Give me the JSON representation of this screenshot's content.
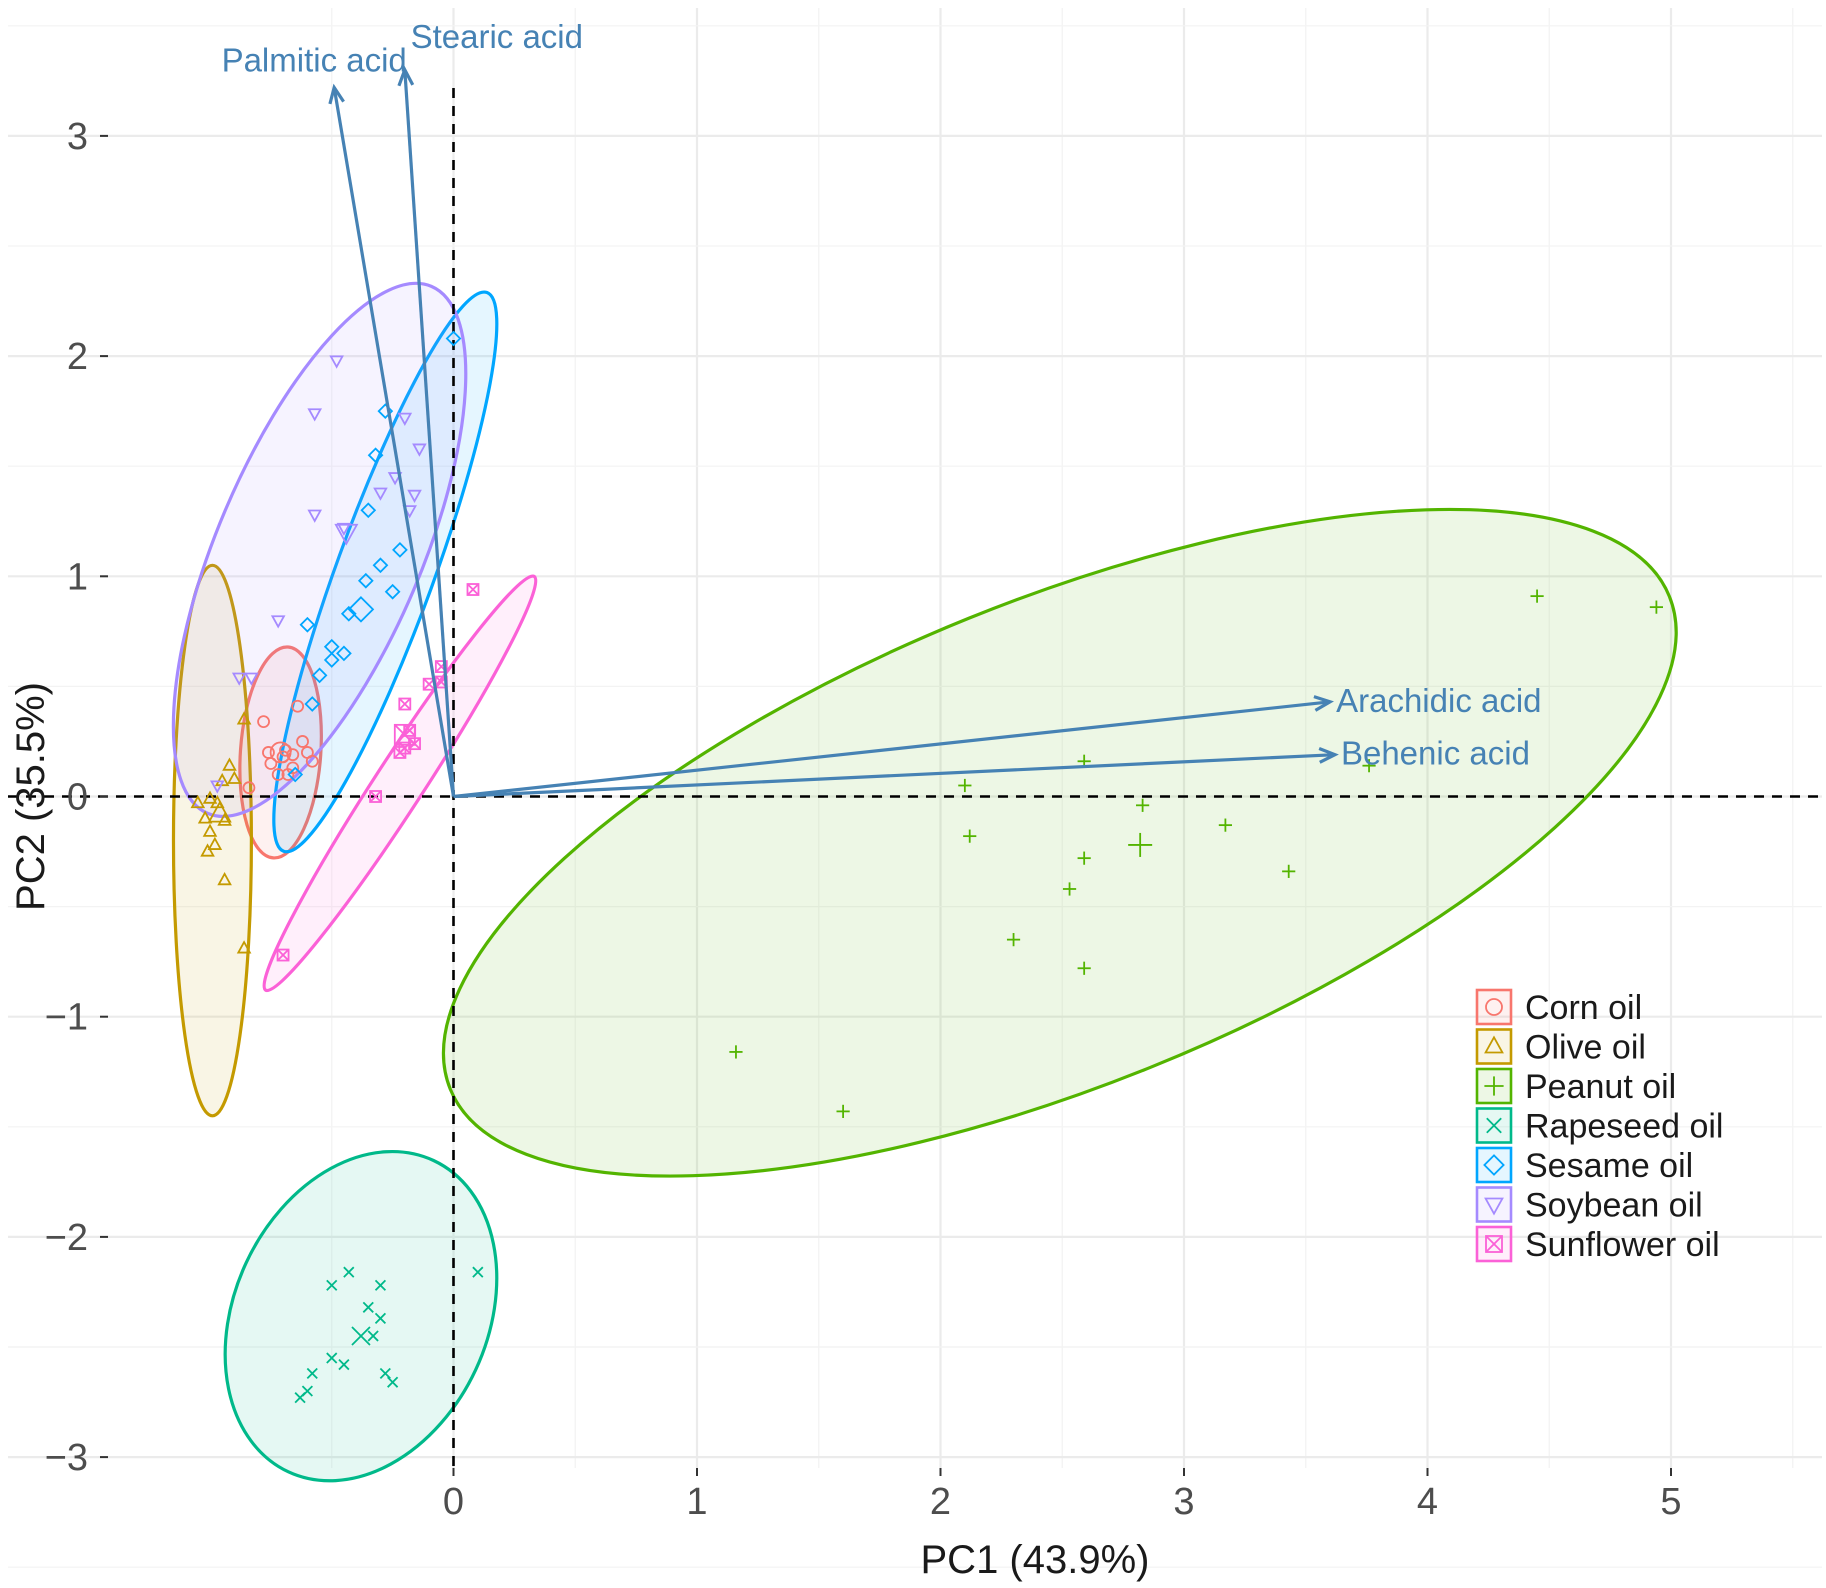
{
  "chart_data": {
    "type": "scatter",
    "subtype": "pca-biplot",
    "title": "",
    "xlabel": "PC1 (43.9%)",
    "ylabel": "PC2 (35.5%)",
    "xlim": [
      -1.05,
      5.6
    ],
    "ylim": [
      -3.3,
      3.5
    ],
    "x_ticks": [
      0,
      1,
      2,
      3,
      4,
      5
    ],
    "y_ticks": [
      -3,
      -2,
      -1,
      0,
      1,
      2,
      3
    ],
    "x_tick_labels": [
      "0",
      "1",
      "2",
      "3",
      "4",
      "5"
    ],
    "y_tick_labels": [
      "−3",
      "−2",
      "−1",
      "0",
      "1",
      "2",
      "3"
    ],
    "grid": true,
    "legend_position": "bottom-right",
    "reference_lines": [
      "x = 0 (dashed)",
      "y = 0 (dashed)"
    ],
    "series": [
      {
        "name": "Corn oil",
        "color": "#f8766d",
        "marker": "circle",
        "points": [
          [
            -0.78,
            0.34
          ],
          [
            -0.69,
            0.21
          ],
          [
            -0.66,
            0.19
          ],
          [
            -0.76,
            0.2
          ],
          [
            -0.62,
            0.25
          ],
          [
            -0.7,
            0.18
          ],
          [
            -0.6,
            0.2
          ],
          [
            -0.75,
            0.15
          ],
          [
            -0.72,
            0.1
          ],
          [
            -0.66,
            0.13
          ],
          [
            -0.68,
            0.1
          ],
          [
            -0.58,
            0.16
          ],
          [
            -0.64,
            0.41
          ],
          [
            -0.84,
            0.04
          ]
        ],
        "centroid": [
          -0.71,
          0.2
        ],
        "ellipse": {
          "center": [
            -0.71,
            0.2
          ],
          "rx": 0.165,
          "ry": 0.48,
          "angle": 4
        }
      },
      {
        "name": "Olive oil",
        "color": "#c49a00",
        "marker": "triangle-up",
        "points": [
          [
            -0.92,
            0.14
          ],
          [
            -0.95,
            0.07
          ],
          [
            -0.9,
            0.08
          ],
          [
            -1.0,
            -0.01
          ],
          [
            -1.05,
            -0.03
          ],
          [
            -0.97,
            -0.03
          ],
          [
            -1.02,
            -0.1
          ],
          [
            -0.94,
            -0.11
          ],
          [
            -1.0,
            -0.16
          ],
          [
            -0.98,
            -0.22
          ],
          [
            -1.01,
            -0.25
          ],
          [
            -0.94,
            -0.38
          ],
          [
            -0.86,
            -0.69
          ],
          [
            -0.86,
            0.35
          ]
        ],
        "centroid": [
          -0.96,
          -0.08
        ],
        "ellipse": {
          "center": [
            -0.99,
            -0.2
          ],
          "rx": 0.16,
          "ry": 1.25,
          "angle": 0
        }
      },
      {
        "name": "Peanut oil",
        "color": "#53b400",
        "marker": "plus",
        "points": [
          [
            2.1,
            0.05
          ],
          [
            2.59,
            0.16
          ],
          [
            2.83,
            -0.04
          ],
          [
            2.12,
            -0.18
          ],
          [
            2.59,
            -0.28
          ],
          [
            3.17,
            -0.13
          ],
          [
            3.43,
            -0.34
          ],
          [
            2.53,
            -0.42
          ],
          [
            2.3,
            -0.65
          ],
          [
            2.59,
            -0.78
          ],
          [
            1.16,
            -1.16
          ],
          [
            1.6,
            -1.43
          ],
          [
            3.76,
            0.14
          ],
          [
            4.45,
            0.91
          ],
          [
            4.94,
            0.86
          ]
        ],
        "centroid": [
          2.82,
          -0.22
        ],
        "ellipse": {
          "center": [
            2.49,
            -0.21
          ],
          "rx": 2.7,
          "ry": 1.1,
          "angle": -22
        }
      },
      {
        "name": "Rapeseed oil",
        "color": "#00b98a",
        "marker": "x",
        "points": [
          [
            -0.5,
            -2.22
          ],
          [
            -0.43,
            -2.16
          ],
          [
            -0.3,
            -2.22
          ],
          [
            -0.35,
            -2.32
          ],
          [
            -0.3,
            -2.37
          ],
          [
            -0.33,
            -2.45
          ],
          [
            -0.5,
            -2.55
          ],
          [
            -0.45,
            -2.58
          ],
          [
            -0.58,
            -2.62
          ],
          [
            -0.6,
            -2.7
          ],
          [
            -0.63,
            -2.73
          ],
          [
            -0.28,
            -2.62
          ],
          [
            -0.25,
            -2.66
          ],
          [
            0.1,
            -2.16
          ]
        ],
        "centroid": [
          -0.38,
          -2.45
        ],
        "ellipse": {
          "center": [
            -0.38,
            -2.36
          ],
          "rx": 0.52,
          "ry": 0.78,
          "angle": 25
        }
      },
      {
        "name": "Sesame oil",
        "color": "#00a6ff",
        "marker": "diamond",
        "points": [
          [
            -0.36,
            0.98
          ],
          [
            -0.43,
            0.83
          ],
          [
            -0.3,
            1.05
          ],
          [
            -0.22,
            1.12
          ],
          [
            -0.35,
            1.3
          ],
          [
            -0.32,
            1.55
          ],
          [
            -0.28,
            1.75
          ],
          [
            -0.25,
            0.93
          ],
          [
            -0.6,
            0.78
          ],
          [
            -0.5,
            0.68
          ],
          [
            -0.45,
            0.65
          ],
          [
            -0.58,
            0.42
          ],
          [
            -0.55,
            0.55
          ],
          [
            -0.65,
            0.1
          ],
          [
            -0.5,
            0.62
          ],
          [
            0.0,
            2.08
          ]
        ],
        "centroid": [
          -0.38,
          0.85
        ],
        "ellipse": {
          "center": [
            -0.28,
            1.02
          ],
          "rx": 0.2,
          "ry": 1.35,
          "angle": 20
        }
      },
      {
        "name": "Soybean oil",
        "color": "#a58aff",
        "marker": "triangle-down",
        "points": [
          [
            -0.48,
            1.98
          ],
          [
            -0.57,
            1.74
          ],
          [
            -0.57,
            1.28
          ],
          [
            -0.45,
            1.22
          ],
          [
            -0.2,
            1.72
          ],
          [
            -0.14,
            1.58
          ],
          [
            -0.3,
            1.38
          ],
          [
            -0.18,
            1.3
          ],
          [
            -0.24,
            1.45
          ],
          [
            -0.16,
            1.37
          ],
          [
            -0.72,
            0.8
          ],
          [
            -0.83,
            0.54
          ],
          [
            -0.88,
            0.54
          ],
          [
            -0.97,
            0.05
          ]
        ],
        "centroid": [
          -0.44,
          1.2
        ],
        "ellipse": {
          "center": [
            -0.55,
            1.12
          ],
          "rx": 0.42,
          "ry": 1.3,
          "angle": 23
        }
      },
      {
        "name": "Sunflower oil",
        "color": "#fb61d7",
        "marker": "square-cross",
        "points": [
          [
            0.08,
            0.94
          ],
          [
            -0.05,
            0.59
          ],
          [
            -0.1,
            0.51
          ],
          [
            -0.05,
            0.52
          ],
          [
            -0.2,
            0.22
          ],
          [
            -0.16,
            0.24
          ],
          [
            -0.2,
            0.42
          ],
          [
            -0.22,
            0.2
          ],
          [
            -0.18,
            0.3
          ],
          [
            -0.32,
            0.0
          ],
          [
            -0.7,
            -0.72
          ]
        ],
        "centroid": [
          -0.2,
          0.28
        ],
        "ellipse": {
          "center": [
            -0.22,
            0.06
          ],
          "rx": 0.1,
          "ry": 1.12,
          "angle": 33
        }
      }
    ],
    "loadings": [
      {
        "name": "Palmitic acid",
        "x": -0.49,
        "y": 3.22
      },
      {
        "name": "Stearic acid",
        "x": -0.2,
        "y": 3.3
      },
      {
        "name": "Arachidic acid",
        "x": 3.6,
        "y": 0.43
      },
      {
        "name": "Behenic acid",
        "x": 3.62,
        "y": 0.19
      }
    ],
    "loading_color": "#4682b4"
  }
}
